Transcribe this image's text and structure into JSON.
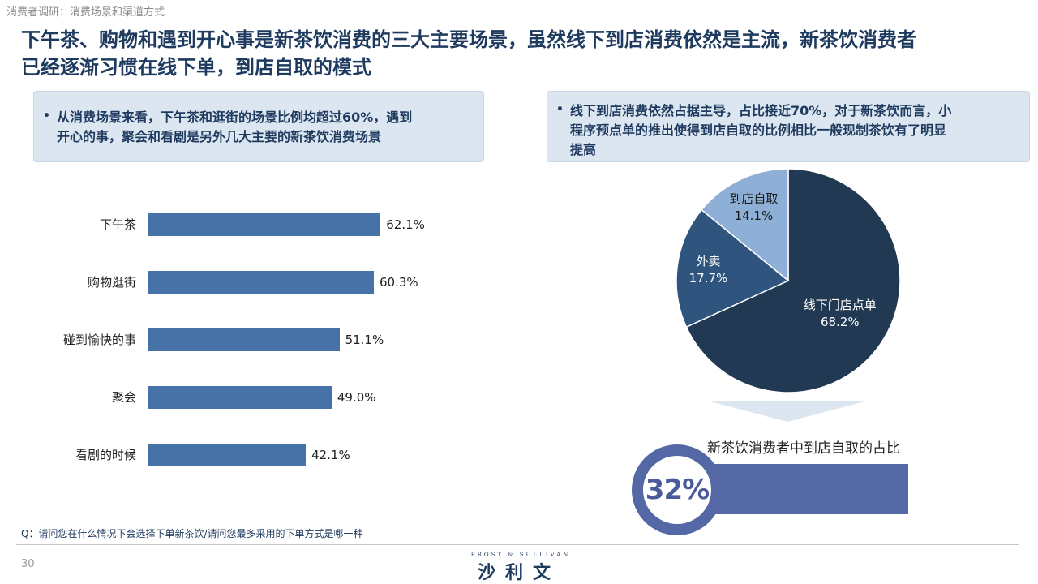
{
  "breadcrumb": "消费者调研：消费场景和渠道方式",
  "headline": {
    "line1": "下午茶、购物和遇到开心事是新茶饮消费的三大主要场景，虽然线下到店消费依然是主流，新茶饮消费者",
    "line2": "已经逐渐习惯在线下单，到店自取的模式"
  },
  "left_note": {
    "bullet": "•",
    "line1": "从消费场景来看，下午茶和逛街的场景比例均超过60%，遇到",
    "line2": "开心的事，聚会和看剧是另外几大主要的新茶饮消费场景"
  },
  "right_note": {
    "bullet": "•",
    "line1": "线下到店消费依然占据主导，占比接近70%，对于新茶饮而言，小",
    "line2": "程序预点单的推出使得到店自取的比例相比一般现制茶饮有了明显",
    "line3": "提高"
  },
  "chart_data": [
    {
      "type": "bar",
      "orientation": "horizontal",
      "categories": [
        "下午茶",
        "购物逛街",
        "碰到愉快的事",
        "聚会",
        "看剧的时候"
      ],
      "values": [
        62.1,
        60.3,
        51.1,
        49.0,
        42.1
      ],
      "value_labels": [
        "62.1%",
        "60.3%",
        "51.1%",
        "49.0%",
        "42.1%"
      ],
      "xlim": [
        0,
        100
      ],
      "grid": false,
      "color": "#4672a8"
    },
    {
      "type": "pie",
      "slices": [
        {
          "label": "线下门店点单",
          "value": 68.2,
          "value_label": "68.2%",
          "color": "#213953"
        },
        {
          "label": "外卖",
          "value": 17.7,
          "value_label": "17.7%",
          "color": "#2f557e"
        },
        {
          "label": "到店自取",
          "value": 14.1,
          "value_label": "14.1%",
          "color": "#8eb0d6"
        }
      ],
      "start_angle_deg": 0
    }
  ],
  "callout": {
    "caption": "新茶饮消费者中到店自取的占比",
    "value": "32%",
    "color": "#5468a6"
  },
  "question": "Q：请问您在什么情况下会选择下单新茶饮/请问您最多采用的下单方式是哪一种",
  "page_number": "30",
  "logo": {
    "latin": "FROST & SULLIVAN",
    "chinese": "沙利文"
  }
}
